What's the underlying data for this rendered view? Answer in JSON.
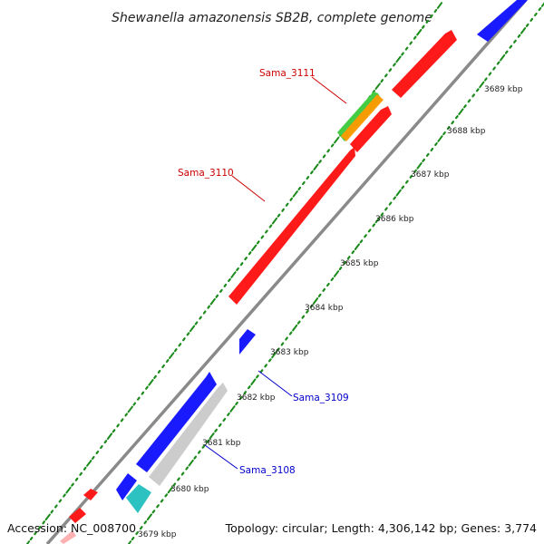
{
  "title": "Shewanella amazonensis SB2B, complete genome",
  "footer": {
    "accession": "Accession: NC_008700",
    "topology": "Topology: circular; Length: 4,306,142 bp; Genes: 3,774"
  },
  "colors": {
    "backbone": "#8a8a8a",
    "ticks": "#1a8a1a",
    "forward_gene": "#ff1a1a",
    "reverse_gene": "#1a1aff",
    "rna_gene": "#2cc2c2",
    "pseudo_gene": "#cccccc",
    "feature_green": "#44cc44",
    "feature_orange": "#ff9900",
    "label_forward": "#cc0000",
    "label_reverse": "#0000cc"
  },
  "position_scale": [
    {
      "label": "3679 kbp",
      "kbp": 3679
    },
    {
      "label": "3680 kbp",
      "kbp": 3680
    },
    {
      "label": "3681 kbp",
      "kbp": 3681
    },
    {
      "label": "3682 kbp",
      "kbp": 3682
    },
    {
      "label": "3683 kbp",
      "kbp": 3683
    },
    {
      "label": "3684 kbp",
      "kbp": 3684
    },
    {
      "label": "3685 kbp",
      "kbp": 3685
    },
    {
      "label": "3686 kbp",
      "kbp": 3686
    },
    {
      "label": "3687 kbp",
      "kbp": 3687
    },
    {
      "label": "3688 kbp",
      "kbp": 3688
    },
    {
      "label": "3689 kbp",
      "kbp": 3689
    }
  ],
  "gene_labels": [
    {
      "name": "Sama_3111",
      "strand": "forward"
    },
    {
      "name": "Sama_3110",
      "strand": "forward"
    },
    {
      "name": "Sama_3109",
      "strand": "reverse"
    },
    {
      "name": "Sama_3108",
      "strand": "reverse"
    }
  ]
}
